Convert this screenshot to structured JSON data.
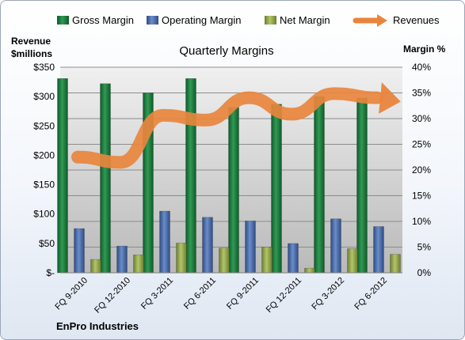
{
  "chart_data": {
    "type": "bar",
    "title": "Quarterly Margins",
    "footer": "EnPro Industries",
    "left_axis_title_line1": "Revenue",
    "left_axis_title_line2": "$millions",
    "right_axis_title": "Margin %",
    "categories": [
      "FQ 9-2010",
      "FQ 12-2010",
      "FQ 3-2011",
      "FQ 6-2011",
      "FQ 9-2011",
      "FQ 12-2011",
      "FQ 3-2012",
      "FQ 6-2012"
    ],
    "left_ylim": [
      0,
      350
    ],
    "right_ylim": [
      0,
      40
    ],
    "left_ticks": [
      "$-",
      "$50",
      "$100",
      "$150",
      "$200",
      "$250",
      "$300",
      "$350"
    ],
    "right_ticks": [
      "0%",
      "5%",
      "10%",
      "15%",
      "20%",
      "25%",
      "30%",
      "35%",
      "40%"
    ],
    "series": [
      {
        "name": "Gross Margin",
        "kind": "bar",
        "axis": "right",
        "color": "#1e7a3c",
        "values": [
          37.8,
          36.8,
          35.0,
          37.8,
          32.2,
          32.8,
          34.3,
          34.0
        ]
      },
      {
        "name": "Operating Margin",
        "kind": "bar",
        "axis": "right",
        "color": "#4a6aa8",
        "values": [
          8.6,
          5.2,
          12.0,
          10.8,
          10.1,
          5.7,
          10.5,
          9.0
        ]
      },
      {
        "name": "Net Margin",
        "kind": "bar",
        "axis": "right",
        "color": "#8ca04a",
        "values": [
          2.6,
          3.5,
          5.8,
          4.8,
          5.0,
          0.9,
          4.7,
          3.6
        ]
      },
      {
        "name": "Revenues",
        "kind": "line",
        "axis": "left",
        "color": "#e8853d",
        "values": [
          197,
          188,
          268,
          260,
          298,
          270,
          305,
          298
        ]
      }
    ],
    "grid": true,
    "legend_position": "top"
  }
}
